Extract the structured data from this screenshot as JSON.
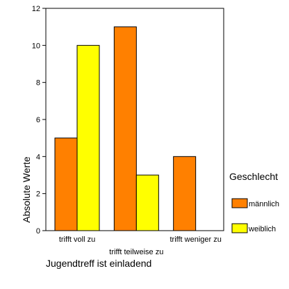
{
  "chart_data": {
    "type": "bar",
    "categories": [
      "trifft voll zu",
      "trifft teilweise zu",
      "trifft weniger zu"
    ],
    "series": [
      {
        "name": "männlich",
        "values": [
          5,
          11,
          4
        ],
        "color": "#FF8000"
      },
      {
        "name": "weiblich",
        "values": [
          10,
          3,
          0
        ],
        "color": "#FFFF00"
      }
    ],
    "title": "",
    "xlabel": "Jugendtreff ist einladend",
    "ylabel": "Absolute Werte",
    "ylim": [
      0,
      12
    ],
    "yticks": [
      0,
      2,
      4,
      6,
      8,
      10,
      12
    ],
    "grid": false,
    "legend": {
      "title": "Geschlecht",
      "placement": "right"
    }
  }
}
